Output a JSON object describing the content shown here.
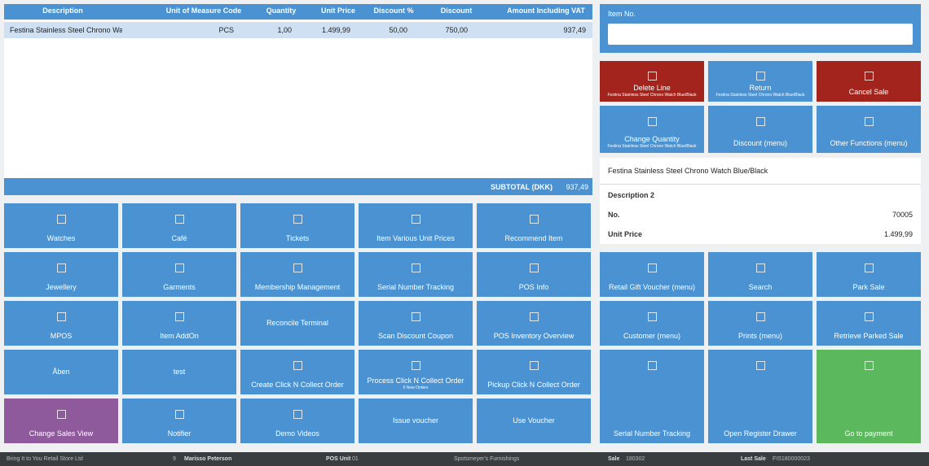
{
  "table": {
    "columns": [
      "Description",
      "Unit of Measure Code",
      "Quantity",
      "Unit Price",
      "Discount %",
      "Discount",
      "Amount Including VAT"
    ],
    "rows": [
      [
        "Festina Stainless Steel Chrono Wat",
        "PCS",
        "1,00",
        "1.499,99",
        "50,00",
        "750,00",
        "937,49"
      ]
    ],
    "subtotal_label": "SUBTOTAL (DKK)",
    "subtotal": "937,49"
  },
  "item_no": {
    "label": "Item No."
  },
  "action_buttons": [
    {
      "label": "Delete Line",
      "sublabel": "Festina Stainless Steel Chrono Watch Blue/Black",
      "color": "#a3241c"
    },
    {
      "label": "Return",
      "sublabel": "Festina Stainless Steel Chrono Watch Blue/Black"
    },
    {
      "label": "Cancel Sale",
      "color": "#a3241c"
    },
    {
      "label": "Change Quantity",
      "sublabel": "Festina Stainless Steel Chrono Watch Blue/Black"
    },
    {
      "label": "Discount (menu)"
    },
    {
      "label": "Other Functions (menu)"
    }
  ],
  "item_info": {
    "name": "Festina Stainless Steel Chrono Watch Blue/Black",
    "fields": [
      {
        "label": "Description 2"
      },
      {
        "label": "No.",
        "value": "70005"
      },
      {
        "label": "Unit Price",
        "value": "1.499,99"
      }
    ]
  },
  "menu_buttons": [
    {
      "label": "Watches"
    },
    {
      "label": "Café"
    },
    {
      "label": "Tickets"
    },
    {
      "label": "Item Various Unit Prices"
    },
    {
      "label": "Recommend Item"
    },
    {
      "label": "Jewellery"
    },
    {
      "label": "Garments"
    },
    {
      "label": "Membership Management"
    },
    {
      "label": "Serial Number Tracking"
    },
    {
      "label": "POS Info"
    },
    {
      "label": "MPOS"
    },
    {
      "label": "Item AddOn"
    },
    {
      "label": "Reconcile Terminal"
    },
    {
      "label": "Scan Discount Coupon"
    },
    {
      "label": "POS Inventory Overview"
    },
    {
      "label": "Åben"
    },
    {
      "label": "test"
    },
    {
      "label": "Create Click N Collect Order"
    },
    {
      "label": "Process Click N Collect Order",
      "sublabel": "0 New Orders"
    },
    {
      "label": "Pickup Click N Collect Order"
    },
    {
      "label": "Change Sales View",
      "color": "#8e5a9c"
    },
    {
      "label": "Notifier"
    },
    {
      "label": "Demo Videos"
    },
    {
      "label": "Issue voucher"
    },
    {
      "label": "Use Voucher"
    }
  ],
  "right_buttons": [
    {
      "label": "Retail Gift Voucher (menu)"
    },
    {
      "label": "Search"
    },
    {
      "label": "Park Sale"
    },
    {
      "label": "Customer (menu)"
    },
    {
      "label": "Prints (menu)"
    },
    {
      "label": "Retrieve Parked Sale"
    },
    {
      "label": "Serial Number Tracking"
    },
    {
      "label": "Open Register Drawer"
    },
    {
      "label": "Go to payment",
      "color": "#5cb85c"
    }
  ],
  "status_bar": [
    "Bring It to You Retail Store Ltd",
    "9",
    "Marisso Peterson",
    "POS Unit",
    "01",
    "Spotsmeyer's Furnishings",
    "Sale",
    "180302",
    "Last Sale",
    "FIS180000023"
  ]
}
